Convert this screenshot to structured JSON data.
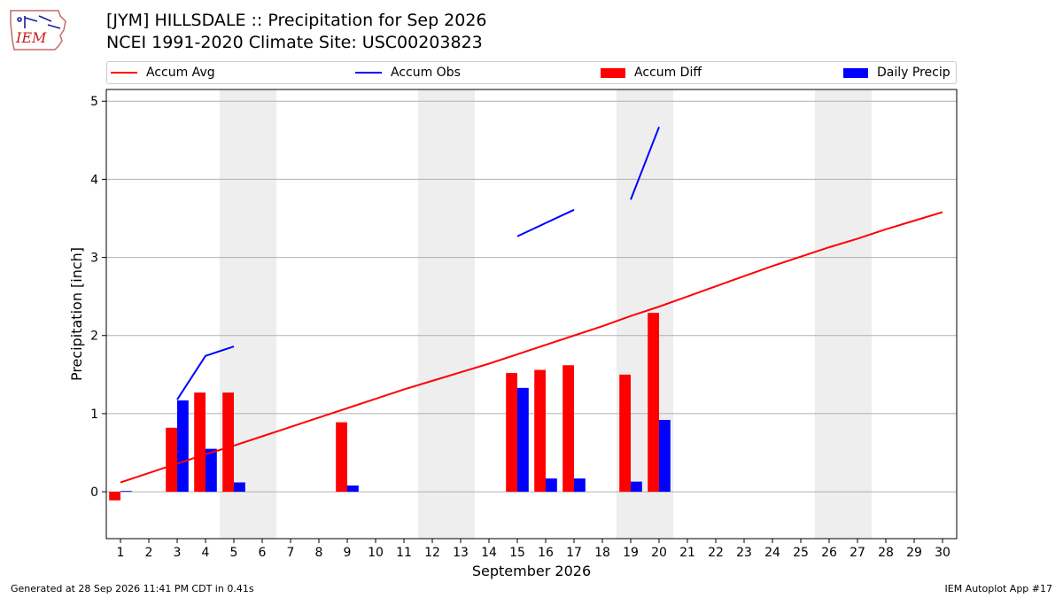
{
  "header": {
    "logo_text": "IEM",
    "title": "[JYM] HILLSDALE :: Precipitation for Sep 2026",
    "subtitle": "NCEI 1991-2020 Climate Site: USC00203823"
  },
  "legend": {
    "items": [
      {
        "label": "Accum Avg",
        "kind": "line",
        "color": "#ff0000"
      },
      {
        "label": "Accum Obs",
        "kind": "line",
        "color": "#0000ff"
      },
      {
        "label": "Accum Diff",
        "kind": "patch",
        "color": "#ff0000"
      },
      {
        "label": "Daily Precip",
        "kind": "patch",
        "color": "#0000ff"
      }
    ]
  },
  "footer": {
    "generated": "Generated at 28 Sep 2026 11:41 PM CDT in 0.41s",
    "app": "IEM Autoplot App #17"
  },
  "colors": {
    "avg": "#ff0000",
    "obs": "#0000ff",
    "diff": "#ff0000",
    "daily": "#0000ff",
    "weekend_shade": "#eeeeee",
    "grid": "#b0b0b0"
  },
  "chart_data": {
    "type": "bar",
    "xlabel": "September 2026",
    "ylabel": "Precipitation [inch]",
    "xlim": [
      0.5,
      30.5
    ],
    "ylim": [
      -0.6,
      5.15
    ],
    "yticks": [
      0,
      1,
      2,
      3,
      4,
      5
    ],
    "grid": "horizontal",
    "legend_placement": "top",
    "x": [
      1,
      2,
      3,
      4,
      5,
      6,
      7,
      8,
      9,
      10,
      11,
      12,
      13,
      14,
      15,
      16,
      17,
      18,
      19,
      20,
      21,
      22,
      23,
      24,
      25,
      26,
      27,
      28,
      29,
      30
    ],
    "weekend_spans": [
      [
        5,
        6
      ],
      [
        12,
        13
      ],
      [
        19,
        20
      ],
      [
        26,
        27
      ]
    ],
    "series": [
      {
        "name": "Accum Avg",
        "kind": "line",
        "values": [
          0.12,
          0.24,
          0.36,
          0.48,
          0.59,
          0.71,
          0.83,
          0.95,
          1.07,
          1.19,
          1.31,
          1.42,
          1.53,
          1.64,
          1.76,
          1.88,
          2.0,
          2.12,
          2.25,
          2.37,
          2.5,
          2.63,
          2.76,
          2.89,
          3.01,
          3.13,
          3.24,
          3.36,
          3.47,
          3.58
        ]
      },
      {
        "name": "Accum Obs",
        "kind": "line",
        "segments": [
          {
            "x": [
              3,
              4,
              5
            ],
            "values": [
              1.18,
              1.74,
              1.86
            ]
          },
          {
            "x": [
              15,
              16,
              17
            ],
            "values": [
              3.27,
              3.44,
              3.61
            ]
          },
          {
            "x": [
              19,
              20
            ],
            "values": [
              3.74,
              4.67
            ]
          }
        ]
      },
      {
        "name": "Accum Diff",
        "kind": "bar",
        "x": [
          1,
          3,
          4,
          5,
          9,
          15,
          16,
          17,
          19,
          20
        ],
        "values": [
          -0.11,
          0.82,
          1.27,
          1.27,
          0.89,
          1.52,
          1.56,
          1.62,
          1.5,
          2.29
        ]
      },
      {
        "name": "Daily Precip",
        "kind": "bar",
        "x": [
          1,
          3,
          4,
          5,
          9,
          15,
          16,
          17,
          19,
          20
        ],
        "values": [
          0.01,
          1.17,
          0.55,
          0.12,
          0.08,
          1.33,
          0.17,
          0.17,
          0.13,
          0.92
        ]
      }
    ]
  }
}
